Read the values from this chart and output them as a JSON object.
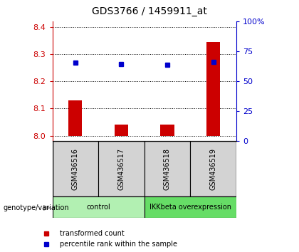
{
  "title": "GDS3766 / 1459911_at",
  "samples": [
    "GSM436516",
    "GSM436517",
    "GSM436518",
    "GSM436519"
  ],
  "bar_values": [
    8.13,
    8.04,
    8.04,
    8.345
  ],
  "bar_bottom": 8.0,
  "blue_dot_values": [
    8.268,
    8.263,
    8.261,
    8.27
  ],
  "ylim_left": [
    7.98,
    8.42
  ],
  "ylim_right": [
    0,
    100
  ],
  "yticks_left": [
    8.0,
    8.1,
    8.2,
    8.3,
    8.4
  ],
  "yticks_right": [
    0,
    25,
    50,
    75,
    100
  ],
  "ytick_right_labels": [
    "0",
    "25",
    "50",
    "75",
    "100%"
  ],
  "left_color": "#cc0000",
  "right_color": "#0000cc",
  "bar_color": "#cc0000",
  "dot_color": "#0000cc",
  "groups": [
    {
      "label": "control",
      "samples": [
        0,
        1
      ],
      "color": "#b2f0b2"
    },
    {
      "label": "IKKbeta overexpression",
      "samples": [
        2,
        3
      ],
      "color": "#66dd66"
    }
  ],
  "genotype_label": "genotype/variation",
  "legend_bar": "transformed count",
  "legend_dot": "percentile rank within the sample",
  "sample_box_color": "#d3d3d3",
  "background_color": "#ffffff",
  "bar_width": 0.3
}
